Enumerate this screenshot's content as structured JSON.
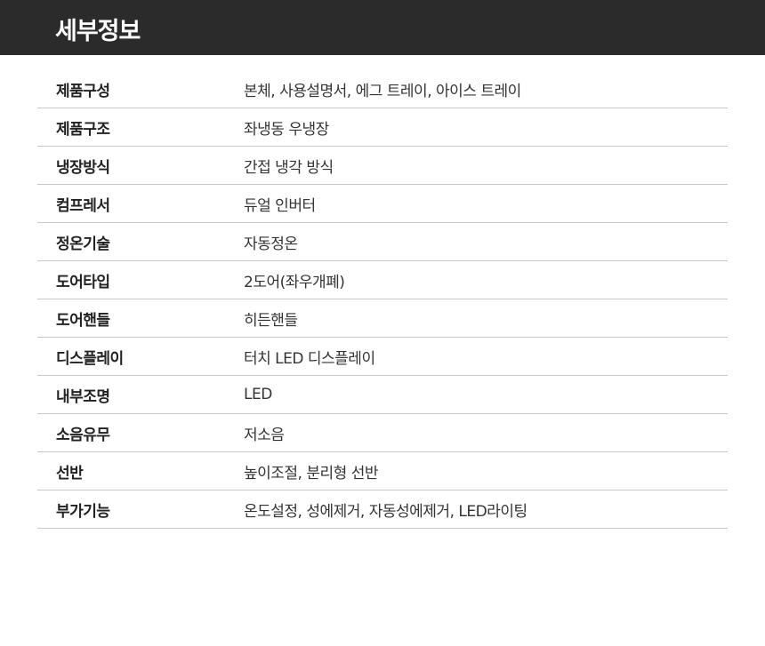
{
  "header": {
    "title": "세부정보"
  },
  "specs": [
    {
      "label": "제품구성",
      "value": "본체, 사용설명서, 에그 트레이, 아이스 트레이"
    },
    {
      "label": "제품구조",
      "value": "좌냉동 우냉장"
    },
    {
      "label": "냉장방식",
      "value": "간접 냉각 방식"
    },
    {
      "label": "컴프레서",
      "value": "듀얼 인버터"
    },
    {
      "label": "정온기술",
      "value": "자동정온"
    },
    {
      "label": "도어타입",
      "value": "2도어(좌우개폐)"
    },
    {
      "label": "도어핸들",
      "value": "히든핸들"
    },
    {
      "label": "디스플레이",
      "value": "터치 LED 디스플레이"
    },
    {
      "label": "내부조명",
      "value": "LED"
    },
    {
      "label": "소음유무",
      "value": "저소음"
    },
    {
      "label": "선반",
      "value": "높이조절, 분리형 선반"
    },
    {
      "label": "부가기능",
      "value": "온도설정, 성에제거, 자동성에제거, LED라이팅"
    }
  ]
}
